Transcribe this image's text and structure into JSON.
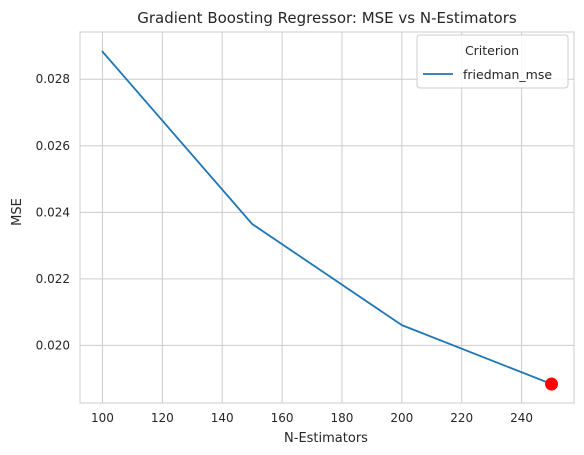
{
  "chart_data": {
    "type": "line",
    "title": "Gradient Boosting Regressor: MSE vs N-Estimators",
    "xlabel": "N-Estimators",
    "ylabel": "MSE",
    "xlim": [
      92.5,
      257.5
    ],
    "ylim": [
      0.01827,
      0.02942
    ],
    "x_ticks": [
      100,
      120,
      140,
      160,
      180,
      200,
      220,
      240
    ],
    "y_ticks": [
      0.02,
      0.022,
      0.024,
      0.026,
      0.028
    ],
    "y_tick_labels": [
      "0.020",
      "0.022",
      "0.024",
      "0.026",
      "0.028"
    ],
    "grid": true,
    "legend": {
      "title": "Criterion",
      "placement": "upper-right"
    },
    "series": [
      {
        "name": "friedman_mse",
        "color": "#1f77b4",
        "x": [
          100,
          150,
          200,
          250
        ],
        "y": [
          0.02883,
          0.02365,
          0.02061,
          0.01884
        ]
      }
    ],
    "highlight": {
      "x": 250,
      "y": 0.01884,
      "color": "#ff0000"
    }
  }
}
